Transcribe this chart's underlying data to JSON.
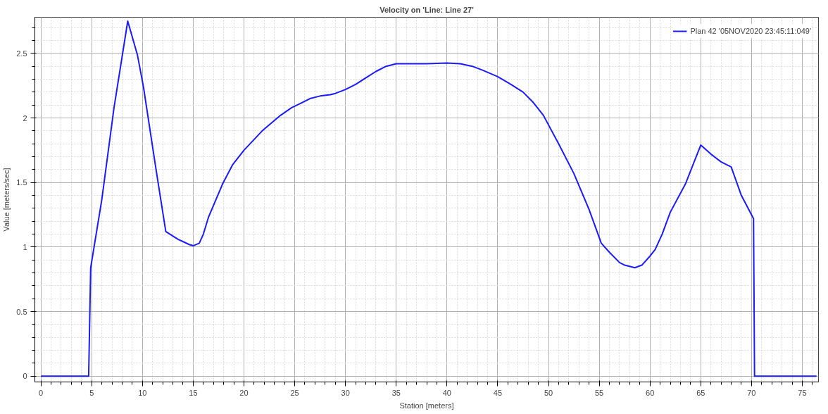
{
  "chart_data": {
    "type": "line",
    "title": "Velocity on 'Line: Line 27'",
    "xlabel": "Station [meters]",
    "ylabel": "Value [meters/sec]",
    "xlim": [
      -0.6,
      76.6
    ],
    "ylim": [
      -0.045,
      2.78
    ],
    "xticks": [
      0,
      5,
      10,
      15,
      20,
      25,
      30,
      35,
      40,
      45,
      50,
      55,
      60,
      65,
      70,
      75
    ],
    "yticks": [
      0,
      0.5,
      1,
      1.5,
      2,
      2.5
    ],
    "grid": true,
    "legend": "top right",
    "marker": "none",
    "line_style": "solid",
    "series": [
      {
        "name": "Plan 42 '05NOV2020 23:45:11:049'",
        "color": "#1a1aff",
        "x": [
          0,
          4.7,
          4.9,
          6.0,
          7.2,
          8.55,
          9.5,
          10.1,
          11.3,
          12.3,
          13.5,
          14.6,
          15.0,
          15.6,
          16.0,
          16.5,
          17.9,
          18.9,
          20.0,
          21.8,
          23.6,
          24.7,
          25.5,
          26.5,
          27.5,
          28.5,
          29,
          30,
          31,
          32,
          33,
          34,
          35,
          35.5,
          38,
          40,
          41.3,
          42.5,
          43.5,
          45,
          46.3,
          47.5,
          48.5,
          49.5,
          51,
          52.5,
          54,
          55.2,
          56,
          57,
          57.5,
          58.5,
          59.2,
          60,
          60.5,
          61.2,
          62,
          63.5,
          65,
          66,
          67,
          68,
          69,
          70,
          70.2,
          70.3,
          76.4
        ],
        "values": [
          0,
          0,
          0.84,
          1.37,
          2.08,
          2.75,
          2.49,
          2.24,
          1.62,
          1.12,
          1.06,
          1.02,
          1.01,
          1.03,
          1.1,
          1.23,
          1.49,
          1.64,
          1.75,
          1.9,
          2.02,
          2.08,
          2.11,
          2.15,
          2.17,
          2.18,
          2.19,
          2.22,
          2.26,
          2.31,
          2.36,
          2.4,
          2.42,
          2.42,
          2.42,
          2.425,
          2.42,
          2.4,
          2.37,
          2.32,
          2.26,
          2.2,
          2.12,
          2.02,
          1.8,
          1.57,
          1.29,
          1.03,
          0.96,
          0.88,
          0.86,
          0.84,
          0.86,
          0.93,
          0.98,
          1.1,
          1.27,
          1.49,
          1.79,
          1.72,
          1.66,
          1.62,
          1.4,
          1.25,
          1.22,
          0,
          0
        ]
      }
    ]
  }
}
